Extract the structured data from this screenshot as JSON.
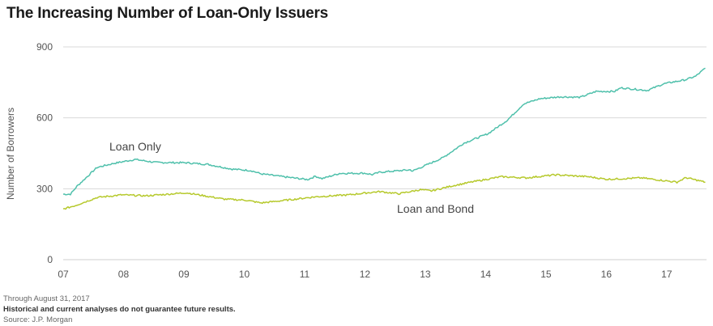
{
  "chart_data": {
    "type": "line",
    "title": "The Increasing Number of Loan-Only Issuers",
    "xlabel": "",
    "ylabel": "Number of Borrowers",
    "xlim": [
      2007,
      2017.66
    ],
    "ylim": [
      0,
      900
    ],
    "yticks": [
      0,
      300,
      600,
      900
    ],
    "xtick_labels": [
      "07",
      "08",
      "09",
      "10",
      "11",
      "12",
      "13",
      "14",
      "15",
      "16",
      "17"
    ],
    "grid": "horizontal",
    "series": [
      {
        "name": "Loan Only",
        "color": "#4fc0ab",
        "x": [
          2007.0,
          2007.12,
          2007.23,
          2007.56,
          2007.83,
          2008.19,
          2008.54,
          2009.04,
          2009.4,
          2009.8,
          2010.11,
          2010.28,
          2010.61,
          2010.91,
          2011.05,
          2011.18,
          2011.29,
          2011.58,
          2011.99,
          2012.12,
          2012.25,
          2012.75,
          2012.79,
          2013.29,
          2013.64,
          2014.04,
          2014.36,
          2014.63,
          2014.9,
          2015.24,
          2015.57,
          2015.83,
          2016.14,
          2016.24,
          2016.68,
          2016.95,
          2017.31,
          2017.48,
          2017.64
        ],
        "y": [
          277,
          277,
          311,
          390,
          407,
          424,
          411,
          410,
          403,
          383,
          377,
          363,
          352,
          343,
          339,
          353,
          343,
          365,
          366,
          360,
          370,
          380,
          375,
          431,
          493,
          533,
          590,
          659,
          681,
          689,
          687,
          712,
          712,
          727,
          716,
          744,
          761,
          776,
          810
        ]
      },
      {
        "name": "Loan and Bond",
        "color": "#b6c92c",
        "x": [
          2007.0,
          2007.2,
          2007.56,
          2007.97,
          2008.37,
          2009.04,
          2009.67,
          2010.02,
          2010.28,
          2010.78,
          2011.18,
          2011.72,
          2012.12,
          2012.25,
          2012.56,
          2012.92,
          2013.1,
          2013.46,
          2013.82,
          2014.26,
          2014.67,
          2015.16,
          2015.7,
          2016.01,
          2016.58,
          2017.17,
          2017.32,
          2017.64
        ],
        "y": [
          214,
          229,
          263,
          274,
          270,
          283,
          256,
          252,
          240,
          254,
          266,
          274,
          285,
          288,
          279,
          296,
          291,
          313,
          331,
          351,
          346,
          359,
          351,
          340,
          346,
          328,
          347,
          328
        ]
      }
    ],
    "annotations": [
      {
        "text": "Loan Only",
        "series": "Loan Only"
      },
      {
        "text": "Loan and Bond",
        "series": "Loan and Bond"
      }
    ]
  },
  "footnotes": {
    "date": "Through August 31, 2017",
    "disclaimer": "Historical and current analyses do not guarantee future results.",
    "source": "Source: J.P. Morgan"
  }
}
